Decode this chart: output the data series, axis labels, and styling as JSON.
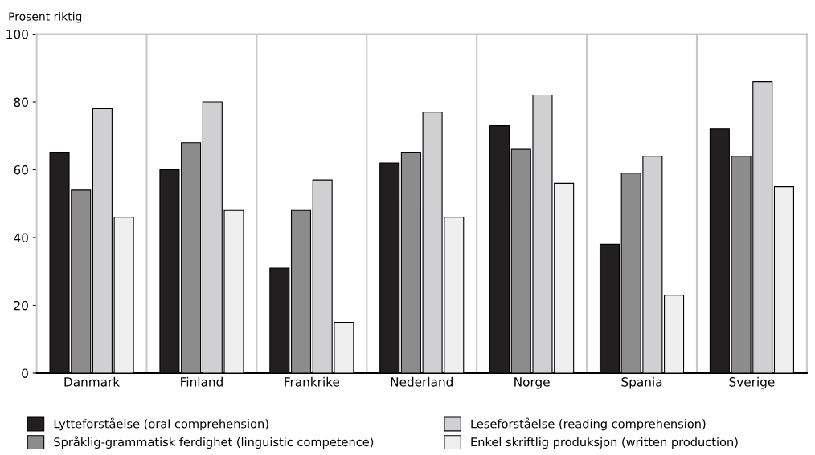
{
  "chart_data": {
    "type": "bar",
    "ylabel": "Prosent riktig",
    "categories": [
      "Danmark",
      "Finland",
      "Frankrike",
      "Nederland",
      "Norge",
      "Spania",
      "Sverige"
    ],
    "series": [
      {
        "name": "Lytteforståelse (oral comprehension)",
        "color": "#231f20",
        "values": [
          65,
          60,
          31,
          62,
          73,
          38,
          72
        ]
      },
      {
        "name": "Språklig-grammatisk ferdighet (linguistic competence)",
        "color": "#8c8c8c",
        "values": [
          54,
          68,
          48,
          65,
          66,
          59,
          64
        ]
      },
      {
        "name": "Leseforståelse (reading comprehension)",
        "color": "#d0d0d2",
        "values": [
          78,
          80,
          57,
          77,
          82,
          64,
          86
        ]
      },
      {
        "name": "Enkel skriftlig produksjon (written production)",
        "color": "#efefef",
        "values": [
          46,
          48,
          15,
          46,
          56,
          23,
          55
        ]
      }
    ],
    "ylim": [
      0,
      100
    ],
    "yticks": [
      0,
      20,
      40,
      60,
      80,
      100
    ],
    "grid": "x",
    "legend": "bottom"
  }
}
